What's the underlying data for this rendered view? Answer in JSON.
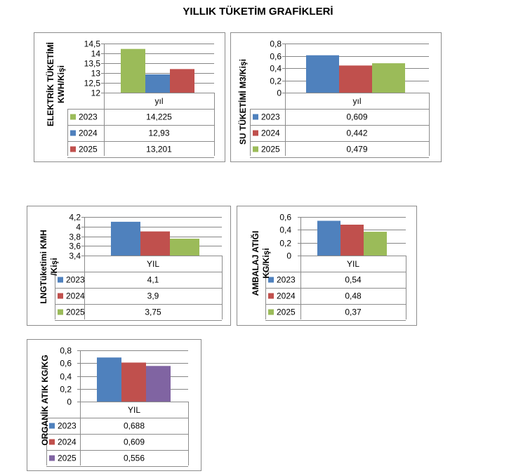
{
  "page": {
    "title": "YILLIK TÜKETİM GRAFİKLERİ"
  },
  "chart_data": [
    {
      "type": "bar",
      "id": "electricity",
      "title": "",
      "ylabel": "ELEKTRİK TÜKETİMİ KWH/Kişi",
      "xlabel": "yıl",
      "category": "yıl",
      "ylim": [
        12,
        14.5
      ],
      "yticks": [
        "14,5",
        "14",
        "13,5",
        "13",
        "12,5",
        "12"
      ],
      "ytick_values": [
        14.5,
        14,
        13.5,
        13,
        12.5,
        12
      ],
      "series": [
        {
          "name": "2023",
          "value": 14.225,
          "label": "14,225",
          "color": "#9bbb59"
        },
        {
          "name": "2024",
          "value": 12.93,
          "label": "12,93",
          "color": "#4f81bd"
        },
        {
          "name": "2025",
          "value": 13.201,
          "label": "13,201",
          "color": "#c0504d"
        }
      ]
    },
    {
      "type": "bar",
      "id": "water",
      "title": "",
      "ylabel": "SU TÜKETİMİ M3/Kişi",
      "xlabel": "yıl",
      "category": "yıl",
      "ylim": [
        0,
        0.8
      ],
      "yticks": [
        "0,8",
        "0,6",
        "0,4",
        "0,2",
        "0"
      ],
      "ytick_values": [
        0.8,
        0.6,
        0.4,
        0.2,
        0
      ],
      "series": [
        {
          "name": "2023",
          "value": 0.609,
          "label": "0,609",
          "color": "#4f81bd"
        },
        {
          "name": "2024",
          "value": 0.442,
          "label": "0,442",
          "color": "#c0504d"
        },
        {
          "name": "2025",
          "value": 0.479,
          "label": "0,479",
          "color": "#9bbb59"
        }
      ]
    },
    {
      "type": "bar",
      "id": "lng",
      "title": "",
      "ylabel": "LNGTüketimi KMH /Kişi",
      "xlabel": "YIL",
      "category": "YIL",
      "ylim": [
        3.4,
        4.2
      ],
      "yticks": [
        "4,2",
        "4",
        "3,8",
        "3,6",
        "3,4"
      ],
      "ytick_values": [
        4.2,
        4,
        3.8,
        3.6,
        3.4
      ],
      "series": [
        {
          "name": "2023",
          "value": 4.1,
          "label": "4,1",
          "color": "#4f81bd"
        },
        {
          "name": "2024",
          "value": 3.9,
          "label": "3,9",
          "color": "#c0504d"
        },
        {
          "name": "2025",
          "value": 3.75,
          "label": "3,75",
          "color": "#9bbb59"
        }
      ]
    },
    {
      "type": "bar",
      "id": "packaging",
      "title": "",
      "ylabel": "AMBALAJ ATIĞI KG/Kişi",
      "xlabel": "YIL",
      "category": "YIL",
      "ylim": [
        0,
        0.6
      ],
      "yticks": [
        "0,6",
        "0,4",
        "0,2",
        "0"
      ],
      "ytick_values": [
        0.6,
        0.4,
        0.2,
        0
      ],
      "series": [
        {
          "name": "2023",
          "value": 0.54,
          "label": "0,54",
          "color": "#4f81bd"
        },
        {
          "name": "2024",
          "value": 0.48,
          "label": "0,48",
          "color": "#c0504d"
        },
        {
          "name": "2025",
          "value": 0.37,
          "label": "0,37",
          "color": "#9bbb59"
        }
      ]
    },
    {
      "type": "bar",
      "id": "organic",
      "title": "",
      "ylabel": "ORGANİK ATIK KG/KG",
      "xlabel": "YIL",
      "category": "YIL",
      "ylim": [
        0,
        0.8
      ],
      "yticks": [
        "0,8",
        "0,6",
        "0,4",
        "0,2",
        "0"
      ],
      "ytick_values": [
        0.8,
        0.6,
        0.4,
        0.2,
        0
      ],
      "series": [
        {
          "name": "2023",
          "value": 0.688,
          "label": "0,688",
          "color": "#4f81bd"
        },
        {
          "name": "2024",
          "value": 0.609,
          "label": "0,609",
          "color": "#c0504d"
        },
        {
          "name": "2025",
          "value": 0.556,
          "label": "0,556",
          "color": "#8064a2"
        }
      ]
    }
  ]
}
